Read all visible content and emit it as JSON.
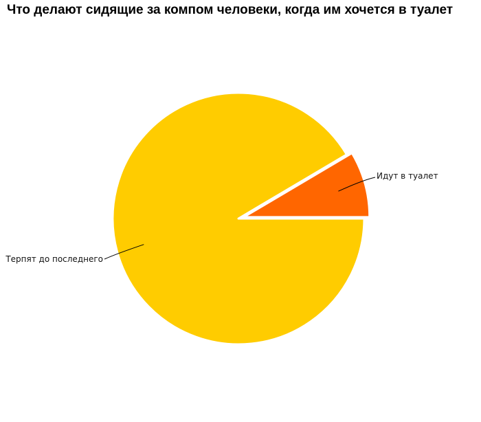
{
  "chart_data": {
    "type": "pie",
    "title": "Что делают сидящие за компом человеки, когда им хочется в туалет",
    "slices": [
      {
        "label": "Идут в туалет",
        "value": 8.5,
        "color": "#FF6600",
        "exploded": true
      },
      {
        "label": "Терпят до последнего",
        "value": 91.5,
        "color": "#FFCC00",
        "exploded": false
      }
    ],
    "legend": "none",
    "labels": "outside with leader lines"
  }
}
